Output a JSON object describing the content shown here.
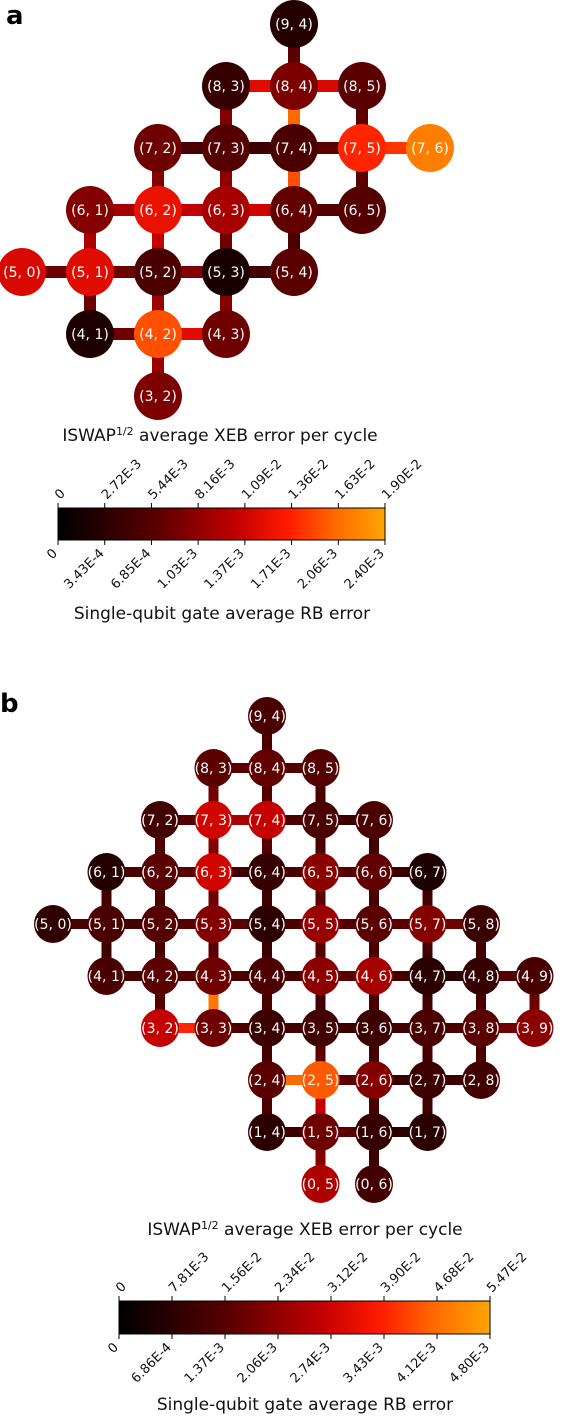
{
  "panels": [
    {
      "letter": "a",
      "coupler_title_main": "ISWAP",
      "coupler_title_sup": "1/2",
      "coupler_title_rest": " average XEB error per cycle",
      "single_title": "Single-qubit gate average RB error",
      "coupler_ticks": [
        "0",
        "2.72E-3",
        "5.44E-3",
        "8.16E-3",
        "1.09E-2",
        "1.36E-2",
        "1.63E-2",
        "1.90E-2"
      ],
      "single_ticks": [
        "0",
        "3.43E-4",
        "6.85E-4",
        "1.03E-3",
        "1.37E-3",
        "1.71E-3",
        "2.06E-3",
        "2.40E-3"
      ],
      "qubits": [
        {
          "label": "(9, 4)",
          "r": 9,
          "c": 4,
          "v": 0.12
        },
        {
          "label": "(8, 3)",
          "r": 8,
          "c": 3,
          "v": 0.18
        },
        {
          "label": "(8, 4)",
          "r": 8,
          "c": 4,
          "v": 0.38
        },
        {
          "label": "(8, 5)",
          "r": 8,
          "c": 5,
          "v": 0.3
        },
        {
          "label": "(7, 2)",
          "r": 7,
          "c": 2,
          "v": 0.35
        },
        {
          "label": "(7, 3)",
          "r": 7,
          "c": 3,
          "v": 0.28
        },
        {
          "label": "(7, 4)",
          "r": 7,
          "c": 4,
          "v": 0.25
        },
        {
          "label": "(7, 5)",
          "r": 7,
          "c": 5,
          "v": 0.72
        },
        {
          "label": "(7, 6)",
          "r": 7,
          "c": 6,
          "v": 0.9
        },
        {
          "label": "(6, 1)",
          "r": 6,
          "c": 1,
          "v": 0.4
        },
        {
          "label": "(6, 2)",
          "r": 6,
          "c": 2,
          "v": 0.65
        },
        {
          "label": "(6, 3)",
          "r": 6,
          "c": 3,
          "v": 0.48
        },
        {
          "label": "(6, 4)",
          "r": 6,
          "c": 4,
          "v": 0.32
        },
        {
          "label": "(6, 5)",
          "r": 6,
          "c": 5,
          "v": 0.28
        },
        {
          "label": "(5, 0)",
          "r": 5,
          "c": 0,
          "v": 0.6
        },
        {
          "label": "(5, 1)",
          "r": 5,
          "c": 1,
          "v": 0.62
        },
        {
          "label": "(5, 2)",
          "r": 5,
          "c": 2,
          "v": 0.25
        },
        {
          "label": "(5, 3)",
          "r": 5,
          "c": 3,
          "v": 0.08
        },
        {
          "label": "(5, 4)",
          "r": 5,
          "c": 4,
          "v": 0.3
        },
        {
          "label": "(4, 1)",
          "r": 4,
          "c": 1,
          "v": 0.1
        },
        {
          "label": "(4, 2)",
          "r": 4,
          "c": 2,
          "v": 0.8
        },
        {
          "label": "(4, 3)",
          "r": 4,
          "c": 3,
          "v": 0.35
        },
        {
          "label": "(3, 2)",
          "r": 3,
          "c": 2,
          "v": 0.38
        }
      ],
      "couplers": [
        {
          "a": "9,4",
          "b": "8,4",
          "v": 0.3
        },
        {
          "a": "8,3",
          "b": "8,4",
          "v": 0.62
        },
        {
          "a": "8,4",
          "b": "8,5",
          "v": 0.6
        },
        {
          "a": "8,3",
          "b": "7,3",
          "v": 0.4
        },
        {
          "a": "8,4",
          "b": "7,4",
          "v": 0.85
        },
        {
          "a": "8,5",
          "b": "7,5",
          "v": 0.3
        },
        {
          "a": "7,2",
          "b": "7,3",
          "v": 0.25
        },
        {
          "a": "7,3",
          "b": "7,4",
          "v": 0.2
        },
        {
          "a": "7,4",
          "b": "7,5",
          "v": 0.3
        },
        {
          "a": "7,5",
          "b": "7,6",
          "v": 0.75
        },
        {
          "a": "7,2",
          "b": "6,2",
          "v": 0.4
        },
        {
          "a": "7,3",
          "b": "6,3",
          "v": 0.42
        },
        {
          "a": "7,4",
          "b": "6,4",
          "v": 0.8
        },
        {
          "a": "7,5",
          "b": "6,5",
          "v": 0.3
        },
        {
          "a": "6,1",
          "b": "6,2",
          "v": 0.48
        },
        {
          "a": "6,2",
          "b": "6,3",
          "v": 0.55
        },
        {
          "a": "6,3",
          "b": "6,4",
          "v": 0.58
        },
        {
          "a": "6,4",
          "b": "6,5",
          "v": 0.28
        },
        {
          "a": "6,1",
          "b": "5,1",
          "v": 0.5
        },
        {
          "a": "6,2",
          "b": "5,2",
          "v": 0.55
        },
        {
          "a": "6,3",
          "b": "5,3",
          "v": 0.35
        },
        {
          "a": "6,4",
          "b": "5,4",
          "v": 0.25
        },
        {
          "a": "5,0",
          "b": "5,1",
          "v": 0.35
        },
        {
          "a": "5,1",
          "b": "5,2",
          "v": 0.35
        },
        {
          "a": "5,2",
          "b": "5,3",
          "v": 0.4
        },
        {
          "a": "5,3",
          "b": "5,4",
          "v": 0.22
        },
        {
          "a": "5,1",
          "b": "4,1",
          "v": 0.35
        },
        {
          "a": "5,2",
          "b": "4,2",
          "v": 0.45
        },
        {
          "a": "5,3",
          "b": "4,3",
          "v": 0.4
        },
        {
          "a": "4,1",
          "b": "4,2",
          "v": 0.35
        },
        {
          "a": "4,2",
          "b": "4,3",
          "v": 0.62
        },
        {
          "a": "4,2",
          "b": "3,2",
          "v": 0.45
        }
      ]
    },
    {
      "letter": "b",
      "coupler_title_main": "ISWAP",
      "coupler_title_sup": "1/2",
      "coupler_title_rest": " average XEB error per cycle",
      "single_title": "Single-qubit gate average RB error",
      "coupler_ticks": [
        "0",
        "7.81E-3",
        "1.56E-2",
        "2.34E-2",
        "3.12E-2",
        "3.90E-2",
        "4.68E-2",
        "5.47E-2"
      ],
      "single_ticks": [
        "0",
        "6.86E-4",
        "1.37E-3",
        "2.06E-3",
        "2.74E-3",
        "3.43E-3",
        "4.12E-3",
        "4.80E-3"
      ],
      "qubits": [
        {
          "label": "(9, 4)",
          "r": 9,
          "c": 4,
          "v": 0.25
        },
        {
          "label": "(8, 3)",
          "r": 8,
          "c": 3,
          "v": 0.3
        },
        {
          "label": "(8, 4)",
          "r": 8,
          "c": 4,
          "v": 0.32
        },
        {
          "label": "(8, 5)",
          "r": 8,
          "c": 5,
          "v": 0.28
        },
        {
          "label": "(7, 2)",
          "r": 7,
          "c": 2,
          "v": 0.22
        },
        {
          "label": "(7, 3)",
          "r": 7,
          "c": 3,
          "v": 0.58
        },
        {
          "label": "(7, 4)",
          "r": 7,
          "c": 4,
          "v": 0.55
        },
        {
          "label": "(7, 5)",
          "r": 7,
          "c": 5,
          "v": 0.25
        },
        {
          "label": "(7, 6)",
          "r": 7,
          "c": 6,
          "v": 0.25
        },
        {
          "label": "(6, 1)",
          "r": 6,
          "c": 1,
          "v": 0.12
        },
        {
          "label": "(6, 2)",
          "r": 6,
          "c": 2,
          "v": 0.3
        },
        {
          "label": "(6, 3)",
          "r": 6,
          "c": 3,
          "v": 0.58
        },
        {
          "label": "(6, 4)",
          "r": 6,
          "c": 4,
          "v": 0.18
        },
        {
          "label": "(6, 5)",
          "r": 6,
          "c": 5,
          "v": 0.42
        },
        {
          "label": "(6, 6)",
          "r": 6,
          "c": 6,
          "v": 0.32
        },
        {
          "label": "(6, 7)",
          "r": 6,
          "c": 7,
          "v": 0.1
        },
        {
          "label": "(5, 0)",
          "r": 5,
          "c": 0,
          "v": 0.16
        },
        {
          "label": "(5, 1)",
          "r": 5,
          "c": 1,
          "v": 0.25
        },
        {
          "label": "(5, 2)",
          "r": 5,
          "c": 2,
          "v": 0.28
        },
        {
          "label": "(5, 3)",
          "r": 5,
          "c": 3,
          "v": 0.4
        },
        {
          "label": "(5, 4)",
          "r": 5,
          "c": 4,
          "v": 0.15
        },
        {
          "label": "(5, 5)",
          "r": 5,
          "c": 5,
          "v": 0.45
        },
        {
          "label": "(5, 6)",
          "r": 5,
          "c": 6,
          "v": 0.3
        },
        {
          "label": "(5, 7)",
          "r": 5,
          "c": 7,
          "v": 0.4
        },
        {
          "label": "(5, 8)",
          "r": 5,
          "c": 8,
          "v": 0.2
        },
        {
          "label": "(4, 1)",
          "r": 4,
          "c": 1,
          "v": 0.25
        },
        {
          "label": "(4, 2)",
          "r": 4,
          "c": 2,
          "v": 0.3
        },
        {
          "label": "(4, 3)",
          "r": 4,
          "c": 3,
          "v": 0.35
        },
        {
          "label": "(4, 4)",
          "r": 4,
          "c": 4,
          "v": 0.26
        },
        {
          "label": "(4, 5)",
          "r": 4,
          "c": 5,
          "v": 0.42
        },
        {
          "label": "(4, 6)",
          "r": 4,
          "c": 6,
          "v": 0.48
        },
        {
          "label": "(4, 7)",
          "r": 4,
          "c": 7,
          "v": 0.14
        },
        {
          "label": "(4, 8)",
          "r": 4,
          "c": 8,
          "v": 0.18
        },
        {
          "label": "(4, 9)",
          "r": 4,
          "c": 9,
          "v": 0.24
        },
        {
          "label": "(3, 2)",
          "r": 3,
          "c": 2,
          "v": 0.55
        },
        {
          "label": "(3, 3)",
          "r": 3,
          "c": 3,
          "v": 0.35
        },
        {
          "label": "(3, 4)",
          "r": 3,
          "c": 4,
          "v": 0.2
        },
        {
          "label": "(3, 5)",
          "r": 3,
          "c": 5,
          "v": 0.22
        },
        {
          "label": "(3, 6)",
          "r": 3,
          "c": 6,
          "v": 0.2
        },
        {
          "label": "(3, 7)",
          "r": 3,
          "c": 7,
          "v": 0.25
        },
        {
          "label": "(3, 8)",
          "r": 3,
          "c": 8,
          "v": 0.3
        },
        {
          "label": "(3, 9)",
          "r": 3,
          "c": 9,
          "v": 0.42
        },
        {
          "label": "(2, 4)",
          "r": 2,
          "c": 4,
          "v": 0.3
        },
        {
          "label": "(2, 5)",
          "r": 2,
          "c": 5,
          "v": 0.82
        },
        {
          "label": "(2, 6)",
          "r": 2,
          "c": 6,
          "v": 0.4
        },
        {
          "label": "(2, 7)",
          "r": 2,
          "c": 7,
          "v": 0.2
        },
        {
          "label": "(2, 8)",
          "r": 2,
          "c": 8,
          "v": 0.22
        },
        {
          "label": "(1, 4)",
          "r": 1,
          "c": 4,
          "v": 0.15
        },
        {
          "label": "(1, 5)",
          "r": 1,
          "c": 5,
          "v": 0.35
        },
        {
          "label": "(1, 6)",
          "r": 1,
          "c": 6,
          "v": 0.18
        },
        {
          "label": "(1, 7)",
          "r": 1,
          "c": 7,
          "v": 0.14
        },
        {
          "label": "(0, 5)",
          "r": 0,
          "c": 5,
          "v": 0.5
        },
        {
          "label": "(0, 6)",
          "r": 0,
          "c": 6,
          "v": 0.22
        }
      ],
      "couplers": [
        {
          "a": "9,4",
          "b": "8,4",
          "v": 0.25
        },
        {
          "a": "8,3",
          "b": "8,4",
          "v": 0.3
        },
        {
          "a": "8,4",
          "b": "8,5",
          "v": 0.28
        },
        {
          "a": "8,3",
          "b": "7,3",
          "v": 0.35
        },
        {
          "a": "8,4",
          "b": "7,4",
          "v": 0.28
        },
        {
          "a": "8,5",
          "b": "7,5",
          "v": 0.25
        },
        {
          "a": "7,2",
          "b": "7,3",
          "v": 0.28
        },
        {
          "a": "7,3",
          "b": "7,4",
          "v": 0.48
        },
        {
          "a": "7,4",
          "b": "7,5",
          "v": 0.25
        },
        {
          "a": "7,5",
          "b": "7,6",
          "v": 0.2
        },
        {
          "a": "7,2",
          "b": "6,2",
          "v": 0.28
        },
        {
          "a": "7,3",
          "b": "6,3",
          "v": 0.4
        },
        {
          "a": "7,4",
          "b": "6,4",
          "v": 0.28
        },
        {
          "a": "7,5",
          "b": "6,5",
          "v": 0.25
        },
        {
          "a": "7,6",
          "b": "6,6",
          "v": 0.22
        },
        {
          "a": "6,1",
          "b": "6,2",
          "v": 0.25
        },
        {
          "a": "6,2",
          "b": "6,3",
          "v": 0.3
        },
        {
          "a": "6,3",
          "b": "6,4",
          "v": 0.22
        },
        {
          "a": "6,4",
          "b": "6,5",
          "v": 0.25
        },
        {
          "a": "6,5",
          "b": "6,6",
          "v": 0.28
        },
        {
          "a": "6,6",
          "b": "6,7",
          "v": 0.2
        },
        {
          "a": "6,1",
          "b": "5,1",
          "v": 0.22
        },
        {
          "a": "6,2",
          "b": "5,2",
          "v": 0.25
        },
        {
          "a": "6,3",
          "b": "5,3",
          "v": 0.35
        },
        {
          "a": "6,4",
          "b": "5,4",
          "v": 0.2
        },
        {
          "a": "6,5",
          "b": "5,5",
          "v": 0.3
        },
        {
          "a": "6,6",
          "b": "5,6",
          "v": 0.25
        },
        {
          "a": "6,7",
          "b": "5,7",
          "v": 0.22
        },
        {
          "a": "5,0",
          "b": "5,1",
          "v": 0.25
        },
        {
          "a": "5,1",
          "b": "5,2",
          "v": 0.22
        },
        {
          "a": "5,2",
          "b": "5,3",
          "v": 0.28
        },
        {
          "a": "5,3",
          "b": "5,4",
          "v": 0.3
        },
        {
          "a": "5,4",
          "b": "5,5",
          "v": 0.25
        },
        {
          "a": "5,5",
          "b": "5,6",
          "v": 0.28
        },
        {
          "a": "5,6",
          "b": "5,7",
          "v": 0.3
        },
        {
          "a": "5,7",
          "b": "5,8",
          "v": 0.35
        },
        {
          "a": "5,1",
          "b": "4,1",
          "v": 0.2
        },
        {
          "a": "5,2",
          "b": "4,2",
          "v": 0.25
        },
        {
          "a": "5,3",
          "b": "4,3",
          "v": 0.3
        },
        {
          "a": "5,4",
          "b": "4,4",
          "v": 0.2
        },
        {
          "a": "5,5",
          "b": "4,5",
          "v": 0.28
        },
        {
          "a": "5,6",
          "b": "4,6",
          "v": 0.25
        },
        {
          "a": "5,7",
          "b": "4,7",
          "v": 0.22
        },
        {
          "a": "5,8",
          "b": "4,8",
          "v": 0.22
        },
        {
          "a": "4,1",
          "b": "4,2",
          "v": 0.25
        },
        {
          "a": "4,2",
          "b": "4,3",
          "v": 0.28
        },
        {
          "a": "4,3",
          "b": "4,4",
          "v": 0.25
        },
        {
          "a": "4,4",
          "b": "4,5",
          "v": 0.22
        },
        {
          "a": "4,5",
          "b": "4,6",
          "v": 0.3
        },
        {
          "a": "4,6",
          "b": "4,7",
          "v": 0.22
        },
        {
          "a": "4,7",
          "b": "4,8",
          "v": 0.15
        },
        {
          "a": "4,8",
          "b": "4,9",
          "v": 0.28
        },
        {
          "a": "4,2",
          "b": "3,2",
          "v": 0.28
        },
        {
          "a": "4,3",
          "b": "3,3",
          "v": 0.88
        },
        {
          "a": "4,4",
          "b": "3,4",
          "v": 0.25
        },
        {
          "a": "4,5",
          "b": "3,5",
          "v": 0.22
        },
        {
          "a": "4,6",
          "b": "3,6",
          "v": 0.25
        },
        {
          "a": "4,7",
          "b": "3,7",
          "v": 0.22
        },
        {
          "a": "4,8",
          "b": "3,8",
          "v": 0.25
        },
        {
          "a": "4,9",
          "b": "3,9",
          "v": 0.35
        },
        {
          "a": "3,2",
          "b": "3,3",
          "v": 0.72
        },
        {
          "a": "3,3",
          "b": "3,4",
          "v": 0.25
        },
        {
          "a": "3,4",
          "b": "3,5",
          "v": 0.22
        },
        {
          "a": "3,5",
          "b": "3,6",
          "v": 0.2
        },
        {
          "a": "3,6",
          "b": "3,7",
          "v": 0.22
        },
        {
          "a": "3,7",
          "b": "3,8",
          "v": 0.25
        },
        {
          "a": "3,8",
          "b": "3,9",
          "v": 0.35
        },
        {
          "a": "3,4",
          "b": "2,4",
          "v": 0.22
        },
        {
          "a": "3,5",
          "b": "2,5",
          "v": 0.3
        },
        {
          "a": "3,6",
          "b": "2,6",
          "v": 0.22
        },
        {
          "a": "3,7",
          "b": "2,7",
          "v": 0.22
        },
        {
          "a": "3,8",
          "b": "2,8",
          "v": 0.25
        },
        {
          "a": "2,4",
          "b": "2,5",
          "v": 0.85
        },
        {
          "a": "2,5",
          "b": "2,6",
          "v": 0.3
        },
        {
          "a": "2,6",
          "b": "2,7",
          "v": 0.18
        },
        {
          "a": "2,7",
          "b": "2,8",
          "v": 0.2
        },
        {
          "a": "2,4",
          "b": "1,4",
          "v": 0.25
        },
        {
          "a": "2,5",
          "b": "1,5",
          "v": 0.55
        },
        {
          "a": "2,6",
          "b": "1,6",
          "v": 0.25
        },
        {
          "a": "2,7",
          "b": "1,7",
          "v": 0.22
        },
        {
          "a": "1,4",
          "b": "1,5",
          "v": 0.2
        },
        {
          "a": "1,5",
          "b": "1,6",
          "v": 0.3
        },
        {
          "a": "1,6",
          "b": "1,7",
          "v": 0.15
        },
        {
          "a": "1,5",
          "b": "0,5",
          "v": 0.4
        },
        {
          "a": "1,6",
          "b": "0,6",
          "v": 0.2
        }
      ]
    }
  ],
  "colormap": "hot (black-red-orange)",
  "colors": {
    "text_on_node": "#ffffff",
    "axis": "#000000"
  }
}
